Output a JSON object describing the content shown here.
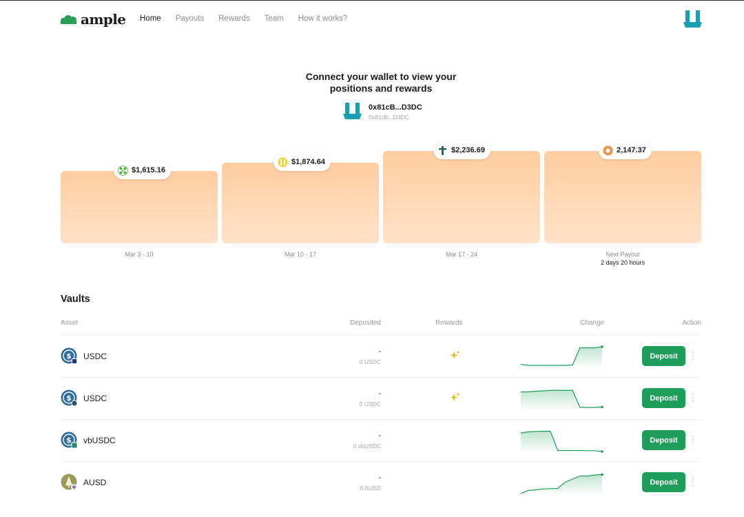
{
  "header": {
    "brand": "ample",
    "nav": [
      {
        "label": "Home",
        "active": true
      },
      {
        "label": "Payouts",
        "active": false
      },
      {
        "label": "Rewards",
        "active": false
      },
      {
        "label": "Team",
        "active": false
      },
      {
        "label": "How it works?",
        "active": false
      }
    ],
    "avatar_icon": "wallet-avatar-icon"
  },
  "connect": {
    "title_line1": "Connect your wallet to view your",
    "title_line2": "positions and rewards",
    "address": "0x81cB...D3DC",
    "address_sub": "0x81cB...D3DC"
  },
  "payouts": [
    {
      "amount": "$1,615.16",
      "label": "Mar 3 - 10",
      "sub": "",
      "icon": "green-token-icon",
      "relative_height": 0.74
    },
    {
      "amount": "$1,874.64",
      "label": "Mar 10 - 17",
      "sub": "",
      "icon": "yellow-token-icon",
      "relative_height": 0.86
    },
    {
      "amount": "$2,236.69",
      "label": "Mar 17 - 24",
      "sub": "",
      "icon": "teal-token-icon",
      "relative_height": 1.0
    },
    {
      "amount": "2,147.37",
      "label": "Next Payout",
      "sub": "2 days 20 hours",
      "icon": "orange-coin-icon",
      "relative_height": 1.0
    }
  ],
  "vaults": {
    "title": "Vaults",
    "columns": {
      "asset": "Asset",
      "deposited": "Deposited",
      "rewards": "Rewards",
      "change": "Change",
      "action": "Action"
    },
    "deposit_label": "Deposit",
    "rows": [
      {
        "asset": "USDC",
        "deposited": "-",
        "deposited_sub": "0 USDC",
        "rewards": true,
        "badge": "square",
        "trend": [
          0.15,
          0.1,
          0.1,
          0.1,
          0.1,
          0.1,
          0.1,
          0.12,
          0.95,
          0.95,
          0.95,
          1.0
        ]
      },
      {
        "asset": "USDC",
        "deposited": "-",
        "deposited_sub": "0 USDC",
        "rewards": true,
        "badge": "circle",
        "trend": [
          0.85,
          0.85,
          0.88,
          0.9,
          0.92,
          0.93,
          0.92,
          0.93,
          0.1,
          0.1,
          0.1,
          0.12
        ]
      },
      {
        "asset": "vbUSDC",
        "deposited": "-",
        "deposited_sub": "0 vbUSDC",
        "rewards": false,
        "badge": "k",
        "trend": [
          0.9,
          0.95,
          0.97,
          0.98,
          0.98,
          0.05,
          0.05,
          0.05,
          0.05,
          0.04,
          0.04,
          0.0
        ]
      },
      {
        "asset": "AUSD",
        "deposited": "-",
        "deposited_sub": "0 AUSD",
        "rewards": false,
        "badge": "diamond",
        "trend": [
          0.0,
          0.15,
          0.18,
          0.22,
          0.24,
          0.25,
          0.55,
          0.7,
          0.85,
          0.85,
          0.9,
          0.92
        ]
      }
    ]
  },
  "colors": {
    "accent_green": "#1f9d5a",
    "card_top": "#ffcda0",
    "card_bottom": "#ffe2c9",
    "avatar_teal": "#1a9fb0",
    "reward_gold": "#e6b810"
  }
}
